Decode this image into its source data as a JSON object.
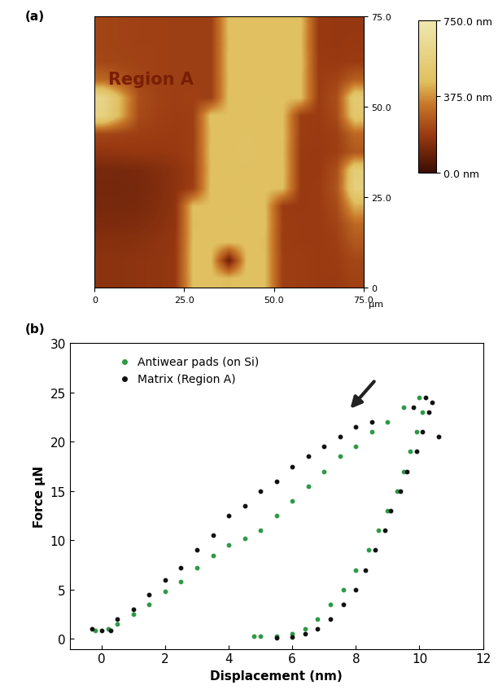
{
  "chart_data": [
    {
      "type": "heatmap",
      "panel_label": "(a)",
      "annotation": "Region A",
      "x_label": "µm",
      "xlim": [
        0,
        75
      ],
      "ylim": [
        0,
        75
      ],
      "xticks": [
        0,
        {
          "value": 25,
          "label": "25.0"
        },
        {
          "value": 50,
          "label": "50.0"
        },
        {
          "value": 75,
          "label": "75.0"
        }
      ],
      "yticks": [
        0,
        {
          "value": 25,
          "label": "25.0"
        },
        {
          "value": 50,
          "label": "50.0"
        },
        {
          "value": 75,
          "label": "75.0"
        }
      ],
      "colorbar": {
        "range": [
          0,
          750
        ],
        "ticks": [
          {
            "value": 0,
            "label": "0.0 nm"
          },
          {
            "value": 375,
            "label": "375.0 nm"
          },
          {
            "value": 750,
            "label": "750.0 nm"
          }
        ]
      },
      "cells": [
        [
          160,
          160,
          165,
          170,
          180,
          450,
          455,
          445,
          460,
          450,
          200,
          195,
          190,
          190,
          210
        ],
        [
          160,
          160,
          165,
          170,
          180,
          455,
          450,
          90,
          455,
          450,
          200,
          195,
          190,
          195,
          220
        ],
        [
          150,
          150,
          155,
          165,
          175,
          450,
          460,
          450,
          455,
          445,
          195,
          190,
          190,
          200,
          260
        ],
        [
          130,
          130,
          135,
          150,
          170,
          445,
          455,
          460,
          450,
          455,
          195,
          190,
          190,
          210,
          300
        ],
        [
          120,
          120,
          125,
          140,
          165,
          450,
          450,
          455,
          460,
          450,
          190,
          185,
          190,
          230,
          420
        ],
        [
          115,
          115,
          120,
          135,
          160,
          200,
          455,
          450,
          460,
          455,
          450,
          185,
          190,
          250,
          560
        ],
        [
          120,
          120,
          125,
          140,
          160,
          195,
          450,
          460,
          455,
          450,
          455,
          185,
          185,
          240,
          540
        ],
        [
          170,
          175,
          180,
          180,
          185,
          200,
          455,
          450,
          470,
          455,
          450,
          190,
          185,
          200,
          260
        ],
        [
          220,
          210,
          200,
          195,
          190,
          200,
          450,
          455,
          460,
          450,
          455,
          195,
          190,
          200,
          300
        ],
        [
          580,
          420,
          230,
          205,
          195,
          200,
          460,
          450,
          455,
          460,
          450,
          195,
          190,
          230,
          500
        ],
        [
          600,
          430,
          240,
          210,
          200,
          205,
          200,
          455,
          450,
          460,
          455,
          450,
          195,
          240,
          520
        ],
        [
          300,
          250,
          215,
          205,
          200,
          200,
          200,
          450,
          455,
          450,
          460,
          450,
          195,
          210,
          280
        ],
        [
          220,
          215,
          210,
          205,
          200,
          200,
          200,
          455,
          450,
          455,
          450,
          455,
          190,
          185,
          190
        ],
        [
          215,
          210,
          205,
          205,
          200,
          200,
          200,
          450,
          460,
          450,
          455,
          450,
          185,
          180,
          185
        ],
        [
          215,
          210,
          205,
          205,
          200,
          200,
          200,
          455,
          450,
          455,
          450,
          455,
          185,
          180,
          180
        ]
      ]
    },
    {
      "type": "scatter",
      "panel_label": "(b)",
      "x_label": "Displacement (nm)",
      "y_label": "Force µN",
      "xlim": [
        -1,
        12
      ],
      "ylim": [
        -1,
        30
      ],
      "xticks": [
        0,
        2,
        4,
        6,
        8,
        10,
        12
      ],
      "yticks": [
        0,
        5,
        10,
        15,
        20,
        25,
        30
      ],
      "legend": "upper left",
      "series": [
        {
          "name": "Antiwear pads (on Si)",
          "color": "#2e9a46",
          "marker": "o",
          "x": [
            -0.2,
            0.2,
            0.5,
            1,
            1.5,
            2,
            2.5,
            3,
            3.5,
            4,
            4.5,
            5,
            5.5,
            6,
            6.5,
            7,
            7.5,
            8,
            8.5,
            9,
            9.5,
            10,
            10.1,
            9.9,
            9.7,
            9.5,
            9.3,
            9,
            8.7,
            8.4,
            8,
            7.6,
            7.2,
            6.8,
            6.4,
            6,
            5.5,
            5,
            4.8
          ],
          "values": [
            0.9,
            1,
            1.5,
            2.5,
            3.5,
            4.8,
            5.8,
            7.2,
            8.5,
            9.5,
            10.2,
            11,
            12.5,
            14,
            15.5,
            17,
            18.5,
            19.5,
            21,
            22,
            23.5,
            24.5,
            23,
            21,
            19,
            17,
            15,
            13,
            11,
            9,
            7,
            5,
            3.5,
            2,
            1,
            0.5,
            0.3,
            0.3,
            0.3
          ]
        },
        {
          "name": "Matrix (Region A)",
          "color": "#111111",
          "marker": "o",
          "x": [
            -0.3,
            0,
            0.3,
            0.5,
            1,
            1.5,
            2,
            2.5,
            3,
            3.5,
            4,
            4.5,
            5,
            5.5,
            6,
            6.5,
            7,
            7.5,
            8,
            8.5,
            9.8,
            10.2,
            10.4,
            10.6,
            10.3,
            10.1,
            9.9,
            9.6,
            9.4,
            9.1,
            8.9,
            8.6,
            8.3,
            8,
            7.6,
            7.2,
            6.8,
            6.4,
            6,
            5.5
          ],
          "values": [
            1,
            0.9,
            0.9,
            2,
            3,
            4.5,
            6,
            7.2,
            9,
            10.5,
            12.5,
            13.5,
            15,
            16,
            17.5,
            18.5,
            19.5,
            20.5,
            21.5,
            22,
            23.5,
            24.5,
            24,
            20.5,
            23,
            21,
            19,
            17,
            15,
            13,
            11,
            9,
            7,
            5,
            3.5,
            2,
            1,
            0.5,
            0.2,
            0.1
          ]
        }
      ]
    }
  ]
}
